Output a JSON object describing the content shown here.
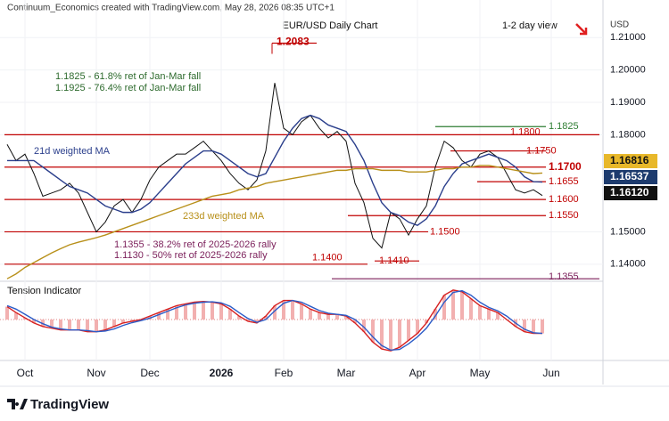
{
  "header": "Continuum_Economics created with TradingView.com, May 28, 2026 08:35 UTC+1",
  "currency": "USD",
  "footer": "TradingView",
  "chart_data": [
    {
      "type": "line",
      "title": "EUR/USD Daily Chart",
      "subtitle": "1-2 day view",
      "categories": [
        null,
        null,
        "Oct",
        null,
        null,
        null,
        null,
        null,
        null,
        null,
        "Nov",
        null,
        null,
        null,
        null,
        null,
        "Dec",
        null,
        null,
        null,
        null,
        null,
        null,
        null,
        "2026",
        null,
        null,
        null,
        null,
        null,
        null,
        "Feb",
        null,
        null,
        null,
        null,
        null,
        null,
        "Mar",
        null,
        null,
        null,
        null,
        null,
        null,
        null,
        "Apr",
        null,
        null,
        null,
        null,
        null,
        null,
        "May",
        null,
        null,
        null,
        null,
        null,
        null,
        null,
        "Jun"
      ],
      "ylim": [
        1.135,
        1.2175
      ],
      "yticks": [
        {
          "value": 1.14,
          "label": "1.14000"
        },
        {
          "value": 1.15,
          "label": "1.15000"
        },
        {
          "value": 1.18,
          "label": "1.18000"
        },
        {
          "value": 1.19,
          "label": "1.19000"
        },
        {
          "value": 1.2,
          "label": "1.20000"
        },
        {
          "value": 1.21,
          "label": "1.21000"
        }
      ],
      "series": [
        {
          "color": "#111111",
          "last_label": "1.16120",
          "values": [
            1.177,
            1.172,
            1.174,
            1.168,
            1.161,
            1.162,
            1.163,
            1.165,
            1.162,
            1.156,
            1.15,
            1.153,
            1.158,
            1.16,
            1.156,
            1.16,
            1.166,
            1.17,
            1.172,
            1.174,
            1.174,
            1.176,
            1.178,
            1.175,
            1.172,
            1.168,
            1.165,
            1.163,
            1.166,
            1.175,
            1.196,
            1.182,
            1.18,
            1.184,
            1.186,
            1.182,
            1.179,
            1.181,
            1.178,
            1.165,
            1.159,
            1.148,
            1.145,
            1.156,
            1.154,
            1.149,
            1.154,
            1.158,
            1.17,
            1.178,
            1.176,
            1.172,
            1.17,
            1.174,
            1.175,
            1.173,
            1.168,
            1.163,
            1.162,
            1.163,
            1.1612,
            null
          ]
        },
        {
          "name": "21d weighted MA",
          "color": "#2b3f8c",
          "last_label": "1.16537",
          "values": [
            1.172,
            1.172,
            1.172,
            1.172,
            1.17,
            1.168,
            1.166,
            1.164,
            1.163,
            1.162,
            1.16,
            1.158,
            1.157,
            1.156,
            1.156,
            1.157,
            1.159,
            1.162,
            1.165,
            1.168,
            1.171,
            1.173,
            1.175,
            1.175,
            1.174,
            1.172,
            1.17,
            1.168,
            1.167,
            1.168,
            1.173,
            1.178,
            1.182,
            1.185,
            1.186,
            1.185,
            1.183,
            1.182,
            1.181,
            1.177,
            1.172,
            1.165,
            1.159,
            1.156,
            1.155,
            1.153,
            1.152,
            1.154,
            1.158,
            1.164,
            1.168,
            1.171,
            1.172,
            1.173,
            1.174,
            1.173,
            1.172,
            1.17,
            1.167,
            1.1655,
            1.16537,
            null
          ]
        },
        {
          "name": "233d weighted MA",
          "color": "#b8901a",
          "last_label": "1.16816",
          "values": [
            1.1355,
            1.137,
            1.139,
            1.1405,
            1.142,
            1.1435,
            1.1448,
            1.146,
            1.1468,
            1.1475,
            1.1482,
            1.149,
            1.15,
            1.151,
            1.152,
            1.153,
            1.154,
            1.155,
            1.156,
            1.157,
            1.158,
            1.159,
            1.16,
            1.161,
            1.1615,
            1.162,
            1.163,
            1.1635,
            1.164,
            1.165,
            1.1655,
            1.166,
            1.1665,
            1.167,
            1.1675,
            1.168,
            1.1685,
            1.169,
            1.169,
            1.1695,
            1.1695,
            1.1695,
            1.169,
            1.169,
            1.169,
            1.1685,
            1.1685,
            1.1685,
            1.169,
            1.1695,
            1.1695,
            1.17,
            1.17,
            1.1705,
            1.1705,
            1.17,
            1.1695,
            1.169,
            1.1685,
            1.168,
            1.16816,
            null
          ]
        }
      ],
      "levels": [
        {
          "value": 1.2083,
          "label": "1.2083",
          "color": "#c00000"
        },
        {
          "value": 1.1825,
          "label": "1.1825",
          "color": "#2e7d32"
        },
        {
          "value": 1.18,
          "label": "1.1800",
          "color": "#c00000"
        },
        {
          "value": 1.175,
          "label": "1.1750",
          "color": "#c00000"
        },
        {
          "value": 1.17,
          "label": "1.1700",
          "color": "#c00000"
        },
        {
          "value": 1.1655,
          "label": "1.1655",
          "color": "#c00000"
        },
        {
          "value": 1.16,
          "label": "1.1600",
          "color": "#c00000"
        },
        {
          "value": 1.155,
          "label": "1.1550",
          "color": "#c00000"
        },
        {
          "value": 1.15,
          "label": "1.1500",
          "color": "#c00000"
        },
        {
          "value": 1.141,
          "label": "1.1410",
          "color": "#c00000"
        },
        {
          "value": 1.14,
          "label": "1.1400",
          "color": "#c00000"
        },
        {
          "value": 1.1355,
          "label": "1.1355",
          "color": "#7b1f5a"
        }
      ],
      "annotations": [
        {
          "text": "1.1825 - 61.8% ret of Jan-Mar fall",
          "color": "#2e6b2e"
        },
        {
          "text": "1.1925 - 76.4% ret of Jan-Mar fall",
          "color": "#2e6b2e"
        },
        {
          "text": "1.1355 - 38.2% ret of 2025-2026 rally",
          "color": "#7b1f5a"
        },
        {
          "text": "1.1130 - 50% ret of 2025-2026 rally",
          "color": "#7b1f5a"
        }
      ]
    },
    {
      "type": "line",
      "title": "Tension Indicator",
      "ylim": [
        -1,
        1
      ],
      "series": [
        {
          "color": "#d62020",
          "values": [
            0.37,
            0.2,
            0.05,
            -0.1,
            -0.2,
            -0.25,
            -0.3,
            -0.3,
            -0.3,
            -0.35,
            -0.35,
            -0.3,
            -0.2,
            -0.1,
            -0.05,
            0,
            0.1,
            0.2,
            0.3,
            0.4,
            0.45,
            0.5,
            0.52,
            0.5,
            0.45,
            0.3,
            0.1,
            -0.05,
            -0.1,
            0.1,
            0.4,
            0.55,
            0.55,
            0.45,
            0.3,
            0.2,
            0.15,
            0.15,
            0.1,
            -0.1,
            -0.35,
            -0.65,
            -0.85,
            -0.9,
            -0.8,
            -0.6,
            -0.4,
            -0.1,
            0.3,
            0.7,
            0.85,
            0.8,
            0.6,
            0.4,
            0.3,
            0.2,
            0,
            -0.2,
            -0.35,
            -0.4,
            -0.4,
            null
          ]
        },
        {
          "color": "#2b5cc8",
          "values": [
            0.4,
            0.3,
            0.15,
            0,
            -0.12,
            -0.22,
            -0.27,
            -0.3,
            -0.3,
            -0.32,
            -0.35,
            -0.33,
            -0.27,
            -0.17,
            -0.09,
            -0.03,
            0.04,
            0.14,
            0.24,
            0.34,
            0.42,
            0.47,
            0.5,
            0.51,
            0.48,
            0.38,
            0.2,
            0.03,
            -0.08,
            0,
            0.25,
            0.47,
            0.55,
            0.5,
            0.38,
            0.26,
            0.18,
            0.15,
            0.12,
            0,
            -0.22,
            -0.5,
            -0.75,
            -0.88,
            -0.86,
            -0.7,
            -0.5,
            -0.25,
            0.1,
            0.5,
            0.78,
            0.83,
            0.7,
            0.5,
            0.35,
            0.25,
            0.1,
            -0.1,
            -0.28,
            -0.38,
            -0.4,
            null
          ]
        }
      ]
    }
  ]
}
